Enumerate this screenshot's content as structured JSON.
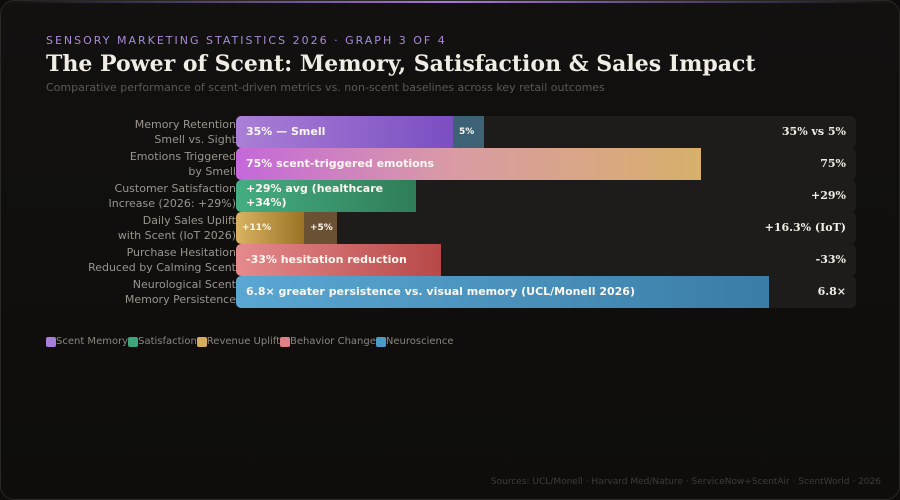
{
  "header": {
    "eyebrow": "SENSORY MARKETING STATISTICS 2026 · GRAPH 3 OF 4",
    "title": "The Power of Scent: Memory, Satisfaction & Sales Impact",
    "subtitle": "Comparative performance of scent-driven metrics vs. non-scent baselines across key retail outcomes"
  },
  "chart_data": {
    "type": "bar",
    "orientation": "horizontal",
    "xlim": [
      0,
      100
    ],
    "grid": false,
    "legend_position": "bottom-left",
    "rows": [
      {
        "label_line1": "Memory Retention",
        "label_line2": "Smell vs. Sight",
        "display_value": "35% vs 5%",
        "segments": [
          {
            "value": 35,
            "text": "35% — Smell",
            "category": "memory",
            "style": "memory"
          },
          {
            "value": 5,
            "text": "5%",
            "category": "memory",
            "style": "baseline"
          }
        ]
      },
      {
        "label_line1": "Emotions Triggered",
        "label_line2": "by Smell",
        "display_value": "75%",
        "segments": [
          {
            "value": 75,
            "text": "75% scent-triggered emotions",
            "category": "memory",
            "style": "emotions"
          }
        ]
      },
      {
        "label_line1": "Customer Satisfaction",
        "label_line2": "Increase (2026: +29%)",
        "display_value": "+29%",
        "segments": [
          {
            "value": 29,
            "text": "+29% avg (healthcare +34%)",
            "category": "satisfaction",
            "style": "satisfaction"
          }
        ]
      },
      {
        "label_line1": "Daily Sales Uplift",
        "label_line2": "with Scent (IoT 2026)",
        "display_value": "+16.3% (IoT)",
        "segments": [
          {
            "value": 11,
            "text": "+11%",
            "category": "revenue",
            "style": "revenue"
          },
          {
            "value": 5.3,
            "text": "+5%",
            "category": "revenue",
            "style": "revenue-dark"
          }
        ]
      },
      {
        "label_line1": "Purchase Hesitation",
        "label_line2": "Reduced by Calming Scent",
        "display_value": "-33%",
        "segments": [
          {
            "value": 33,
            "text": "-33% hesitation reduction",
            "category": "behavior",
            "style": "behavior"
          }
        ]
      },
      {
        "label_line1": "Neurological Scent",
        "label_line2": "Memory Persistence",
        "display_value": "6.8×",
        "segments": [
          {
            "value": 86,
            "text": "6.8× greater persistence vs. visual memory (UCL/Monell 2026)",
            "category": "neuro",
            "style": "neuro"
          }
        ]
      }
    ]
  },
  "legend": [
    {
      "label": "Scent Memory",
      "color": "#a87ddb"
    },
    {
      "label": "Satisfaction",
      "color": "#3fa57a"
    },
    {
      "label": "Revenue Uplift",
      "color": "#d6ac5e"
    },
    {
      "label": "Behavior Change",
      "color": "#e07f86"
    },
    {
      "label": "Neuroscience",
      "color": "#4b9bc8"
    }
  ],
  "styles": {
    "memory": "linear-gradient(90deg, #a97fd6 0%, #7b4ec2 100%)",
    "baseline": "#3d6276",
    "emotions": "linear-gradient(90deg, #c468da 0%, #d99aa6 45%, #d7b06a 100%)",
    "satisfaction": "linear-gradient(90deg, #45ad82 0%, #2f7d58 100%)",
    "revenue": "linear-gradient(90deg, #d8b362 0%, #9c7325 100%)",
    "revenue-dark": "#6b5133",
    "behavior": "linear-gradient(90deg, #e58a8d 0%, #b74847 100%)",
    "neuro": "linear-gradient(90deg, #5aa7d3 0%, #3a7da6 100%)"
  },
  "source": "Sources: UCL/Monell · Harvard Med/Nature · ServiceNow+ScentAir · ScentWorld · 2026"
}
